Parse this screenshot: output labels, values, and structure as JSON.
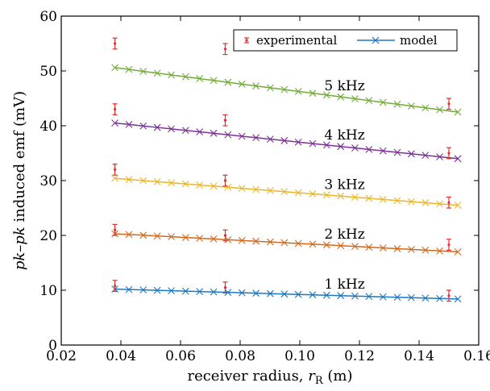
{
  "chart_data": {
    "type": "line",
    "title": "",
    "xlabel": "receiver radius, ",
    "xlabel_var": "r",
    "xlabel_sub": "R",
    "xlabel_unit": " (m)",
    "ylabel_pre": "pk–pk",
    "ylabel_post": " induced emf (mV)",
    "xlim": [
      0.02,
      0.16
    ],
    "ylim": [
      0,
      60
    ],
    "xticks": [
      "0.02",
      "0.04",
      "0.06",
      "0.08",
      "0.10",
      "0.12",
      "0.14",
      "0.16"
    ],
    "yticks": [
      "0",
      "10",
      "20",
      "30",
      "40",
      "50",
      "60"
    ],
    "legend": {
      "experimental": "experimental",
      "model": "model",
      "position": "top-right"
    },
    "colors": {
      "experimental": "#e0302a",
      "1 kHz": "#1f77c0",
      "2 kHz": "#d2691e",
      "3 kHz": "#e9b62c",
      "4 kHz": "#7b3294",
      "5 kHz": "#72ab3a"
    },
    "model_x": [
      0.038,
      0.0427,
      0.0475,
      0.0522,
      0.0569,
      0.0617,
      0.0664,
      0.0711,
      0.0759,
      0.0806,
      0.0853,
      0.0901,
      0.0948,
      0.0995,
      0.1043,
      0.109,
      0.1137,
      0.1185,
      0.1232,
      0.1279,
      0.1327,
      0.1374,
      0.1421,
      0.1469,
      0.153
    ],
    "series": [
      {
        "name": "1 kHz",
        "label": "1 kHz",
        "model_start": 10.2,
        "model_end": 8.4,
        "experimental": [
          {
            "x": 0.038,
            "y": 10.8,
            "err": 1.0
          },
          {
            "x": 0.075,
            "y": 10.5,
            "err": 1.0
          },
          {
            "x": 0.15,
            "y": 9.0,
            "err": 1.0
          }
        ]
      },
      {
        "name": "2 kHz",
        "label": "2 kHz",
        "model_start": 20.3,
        "model_end": 17.0,
        "experimental": [
          {
            "x": 0.038,
            "y": 21.0,
            "err": 1.0
          },
          {
            "x": 0.075,
            "y": 20.0,
            "err": 1.0
          },
          {
            "x": 0.15,
            "y": 18.3,
            "err": 1.0
          }
        ]
      },
      {
        "name": "3 kHz",
        "label": "3 kHz",
        "model_start": 30.4,
        "model_end": 25.5,
        "experimental": [
          {
            "x": 0.038,
            "y": 32.0,
            "err": 1.0
          },
          {
            "x": 0.075,
            "y": 30.0,
            "err": 1.0
          },
          {
            "x": 0.15,
            "y": 26.0,
            "err": 1.0
          }
        ]
      },
      {
        "name": "4 kHz",
        "label": "4 kHz",
        "model_start": 40.5,
        "model_end": 34.0,
        "experimental": [
          {
            "x": 0.038,
            "y": 43.0,
            "err": 1.0
          },
          {
            "x": 0.075,
            "y": 41.0,
            "err": 1.0
          },
          {
            "x": 0.15,
            "y": 35.0,
            "err": 1.0
          }
        ]
      },
      {
        "name": "5 kHz",
        "label": "5 kHz",
        "model_start": 50.6,
        "model_end": 42.5,
        "experimental": [
          {
            "x": 0.038,
            "y": 55.0,
            "err": 1.0
          },
          {
            "x": 0.075,
            "y": 54.0,
            "err": 1.0
          },
          {
            "x": 0.15,
            "y": 44.0,
            "err": 1.0
          }
        ]
      }
    ]
  }
}
